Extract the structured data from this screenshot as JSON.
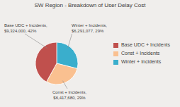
{
  "chart_data": {
    "type": "pie",
    "title": "SW Region - Breakdown of User Delay Cost",
    "categories": [
      "Winter + Incidents",
      "Const + Incidents",
      "Base UDC + Incidents"
    ],
    "values": [
      29,
      29,
      42
    ],
    "colors": [
      "#3aaecc",
      "#fac090",
      "#c0504d"
    ],
    "annotations": [
      "Winter + Incidents,\n$6,291,077, 29%",
      "Const + Incidents,\n$6,417,680, 29%",
      "Base UDC + Incidents,\n$9,324,000, 42%"
    ],
    "legend": "right"
  }
}
